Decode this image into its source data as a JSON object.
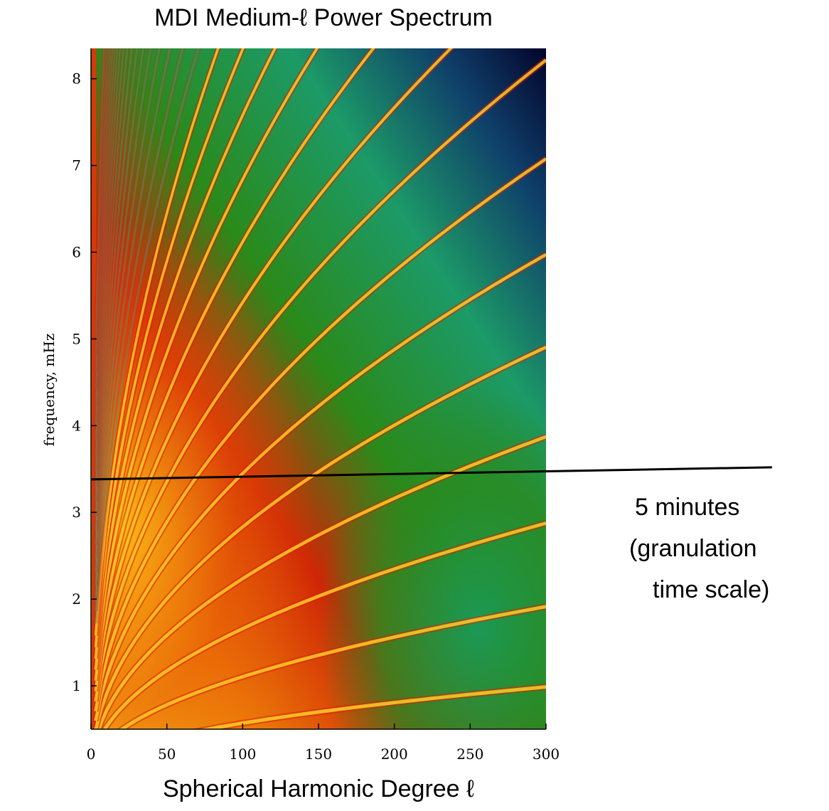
{
  "chart_data": {
    "type": "spectrum",
    "title": "MDI Medium-ℓ  Power Spectrum",
    "x_label": "Spherical Harmonic Degree ℓ",
    "y_label": "frequency, mHz",
    "xlim": [
      0,
      300
    ],
    "xticks": [
      0,
      50,
      100,
      150,
      200,
      250,
      300
    ],
    "ylim": [
      0.5,
      8.35
    ],
    "yticks": [
      1,
      2,
      3,
      4,
      5,
      6,
      7,
      8
    ],
    "annotations": [
      {
        "text": [
          "5 minutes",
          "(granulation",
          "time scale)"
        ],
        "x": [
          0,
          449
        ],
        "y": [
          3.38,
          3.52
        ],
        "color": "#000000"
      }
    ]
  }
}
